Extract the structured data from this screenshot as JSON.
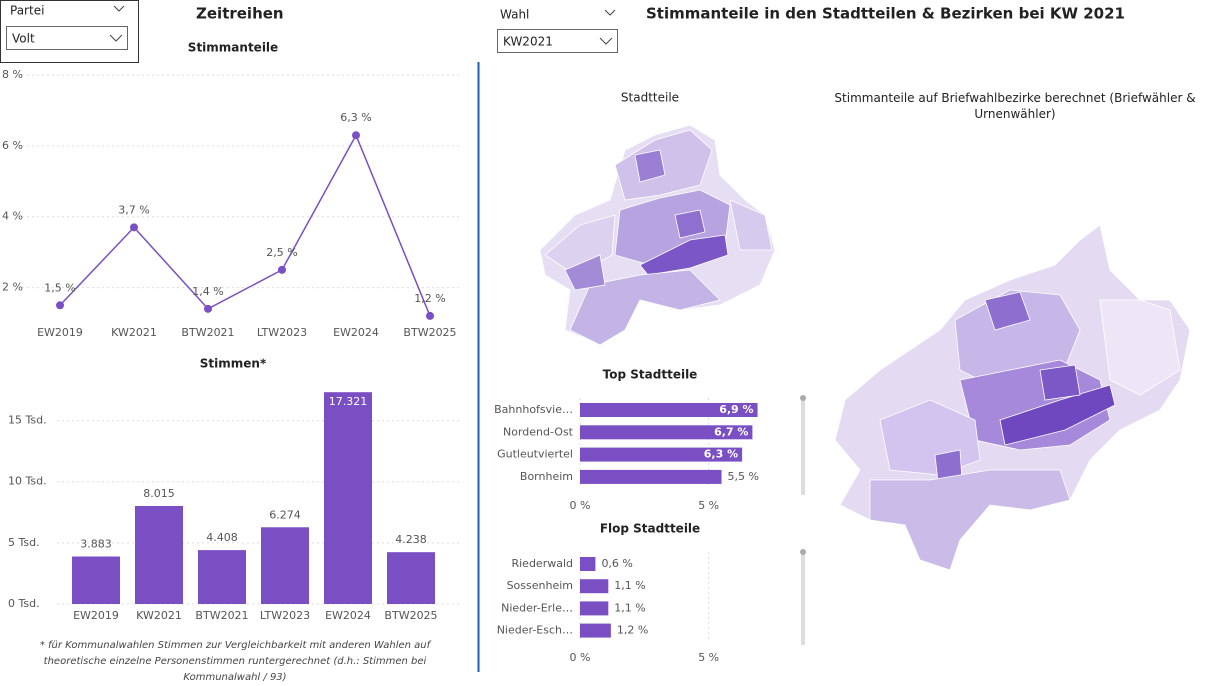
{
  "filters": [
    {
      "label": "Partei",
      "value": "Volt"
    },
    {
      "label": "Wahl",
      "value": "KW2021"
    }
  ],
  "headings": {
    "left": "Zeitreihen",
    "right": "Stimmanteile in den Stadtteilen & Bezirken bei KW 2021"
  },
  "map_titles": [
    "Stadtteile",
    "Stimmanteile auf Briefwahlbezirke berechnet (Briefwähler & Urnenwähler)"
  ],
  "footnote": "* für Kommunalwahlen Stimmen zur Vergleichbarkeit mit anderen Wahlen auf theoretische einzelne Personenstimmen runtergerechnet (d.h.: Stimmen bei Kommunalwahl / 93)",
  "chart_data": [
    {
      "type": "line",
      "title": "Stimmanteile",
      "color": "#7b4fc4",
      "grid": true,
      "categories": [
        "EW2019",
        "KW2021",
        "BTW2021",
        "LTW2023",
        "EW2024",
        "BTW2025"
      ],
      "values": [
        1.5,
        3.7,
        1.4,
        2.5,
        6.3,
        1.2
      ],
      "value_labels": [
        "1,5 %",
        "3,7 %",
        "1,4 %",
        "2,5 %",
        "6,3 %",
        "1,2 %"
      ],
      "ylim": [
        1,
        8
      ],
      "yticks": [
        {
          "value": 2,
          "label": "2 %"
        },
        {
          "value": 4,
          "label": "4 %"
        },
        {
          "value": 6,
          "label": "6 %"
        },
        {
          "value": 8,
          "label": "8 %"
        }
      ]
    },
    {
      "type": "bar",
      "title": "Stimmen*",
      "color": "#7b4fc4",
      "grid": true,
      "categories": [
        "EW2019",
        "KW2021",
        "BTW2021",
        "LTW2023",
        "EW2024",
        "BTW2025"
      ],
      "values": [
        3883,
        8015,
        4408,
        6274,
        17321,
        4238
      ],
      "value_labels": [
        "3.883",
        "8.015",
        "4.408",
        "6.274",
        "17.321",
        "4.238"
      ],
      "ylim": [
        0,
        17500
      ],
      "yticks": [
        {
          "value": 0,
          "label": "0 Tsd."
        },
        {
          "value": 5000,
          "label": "5 Tsd."
        },
        {
          "value": 10000,
          "label": "10 Tsd."
        },
        {
          "value": 15000,
          "label": "15 Tsd."
        }
      ]
    },
    {
      "type": "hbar",
      "title": "Top Stadtteile",
      "color": "#7b4fc4",
      "grid": true,
      "categories": [
        "Bahnhofsvie…",
        "Nordend-Ost",
        "Gutleutviertel",
        "Bornheim"
      ],
      "values": [
        6.9,
        6.7,
        6.3,
        5.5
      ],
      "value_labels": [
        "6,9 %",
        "6,7 %",
        "6,3 %",
        "5,5 %"
      ],
      "xlim": [
        0,
        7.5
      ],
      "xticks": [
        {
          "value": 0,
          "label": "0 %"
        },
        {
          "value": 5,
          "label": "5 %"
        }
      ]
    },
    {
      "type": "hbar",
      "title": "Flop Stadtteile",
      "color": "#7b4fc4",
      "grid": true,
      "categories": [
        "Riederwald",
        "Sossenheim",
        "Nieder-Erle…",
        "Nieder-Esch…"
      ],
      "values": [
        0.6,
        1.1,
        1.1,
        1.2
      ],
      "value_labels": [
        "0,6 %",
        "1,1 %",
        "1,1 %",
        "1,2 %"
      ],
      "xlim": [
        0,
        7.5
      ],
      "xticks": [
        {
          "value": 0,
          "label": "0 %"
        },
        {
          "value": 5,
          "label": "5 %"
        }
      ]
    }
  ]
}
